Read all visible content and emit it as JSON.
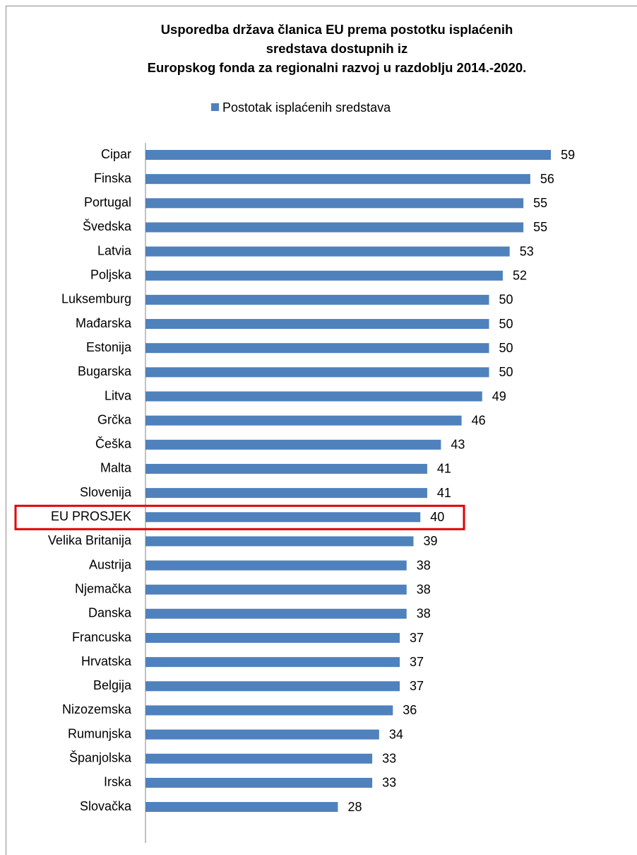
{
  "chart_data": {
    "type": "bar",
    "orientation": "horizontal",
    "title": [
      "Usporedba država članica EU prema postotku isplaćenih",
      "sredstava dostupnih iz",
      "Europskog fonda za regionalni razvoj u razdoblju 2014.-2020."
    ],
    "categories": [
      "Cipar",
      "Finska",
      "Portugal",
      "Švedska",
      "Latvia",
      "Poljska",
      "Luksemburg",
      "Mađarska",
      "Estonija",
      "Bugarska",
      "Litva",
      "Grčka",
      "Češka",
      "Malta",
      "Slovenija",
      "EU PROSJEK",
      "Velika Britanija",
      "Austrija",
      "Njemačka",
      "Danska",
      "Francuska",
      "Hrvatska",
      "Belgija",
      "Nizozemska",
      "Rumunjska",
      "Španjolska",
      "Irska",
      "Slovačka"
    ],
    "series": [
      {
        "name": "Postotak isplaćenih sredstava",
        "color": "#4f81bd",
        "values": [
          59,
          56,
          55,
          55,
          53,
          52,
          50,
          50,
          50,
          50,
          49,
          46,
          43,
          41,
          41,
          40,
          39,
          38,
          38,
          38,
          37,
          37,
          37,
          36,
          34,
          33,
          33,
          28
        ]
      }
    ],
    "legend": "top",
    "highlight_category": "EU PROSJEK",
    "highlight_color": "#e00000"
  }
}
